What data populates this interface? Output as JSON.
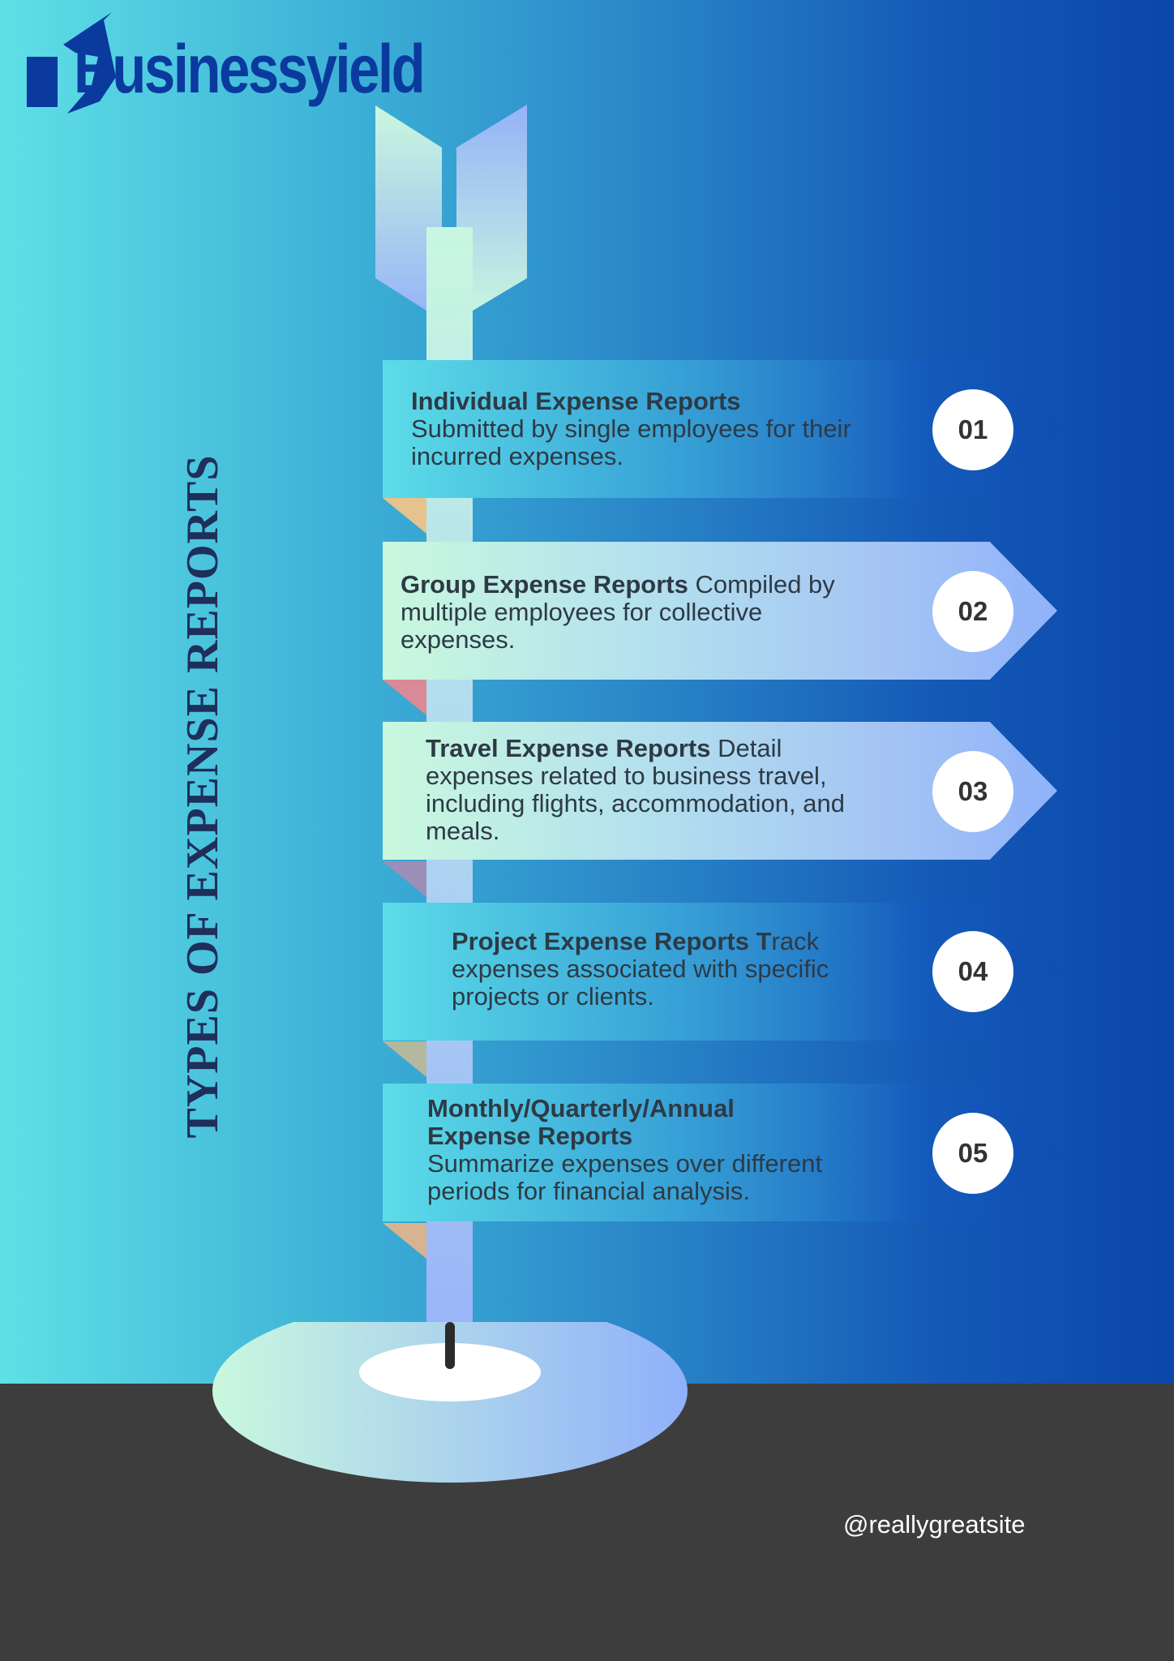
{
  "brand": {
    "logo_text": "Businessyield"
  },
  "title": "TYPES OF EXPENSE REPORTS",
  "items": [
    {
      "number": "01",
      "title": "Individual Expense Reports",
      "body": "Submitted by single employees for their incurred expenses."
    },
    {
      "number": "02",
      "title": "Group Expense Reports",
      "body": "Compiled by multiple employees for collective expenses."
    },
    {
      "number": "03",
      "title": "Travel Expense Reports",
      "body": "Detail expenses related to business travel, including flights, accommodation, and meals."
    },
    {
      "number": "04",
      "title": "Project Expense Reports T",
      "body": "rack expenses associated with specific projects or clients."
    },
    {
      "number": "05",
      "title": "Monthly/Quarterly/Annual Expense Reports",
      "body": "Summarize expenses over different periods for financial analysis."
    }
  ],
  "footer": {
    "handle": "@reallygreatsite"
  },
  "colors": {
    "brand": "#0a3a9e",
    "floor": "#3d3d3d",
    "title": "#1f2e5a"
  }
}
